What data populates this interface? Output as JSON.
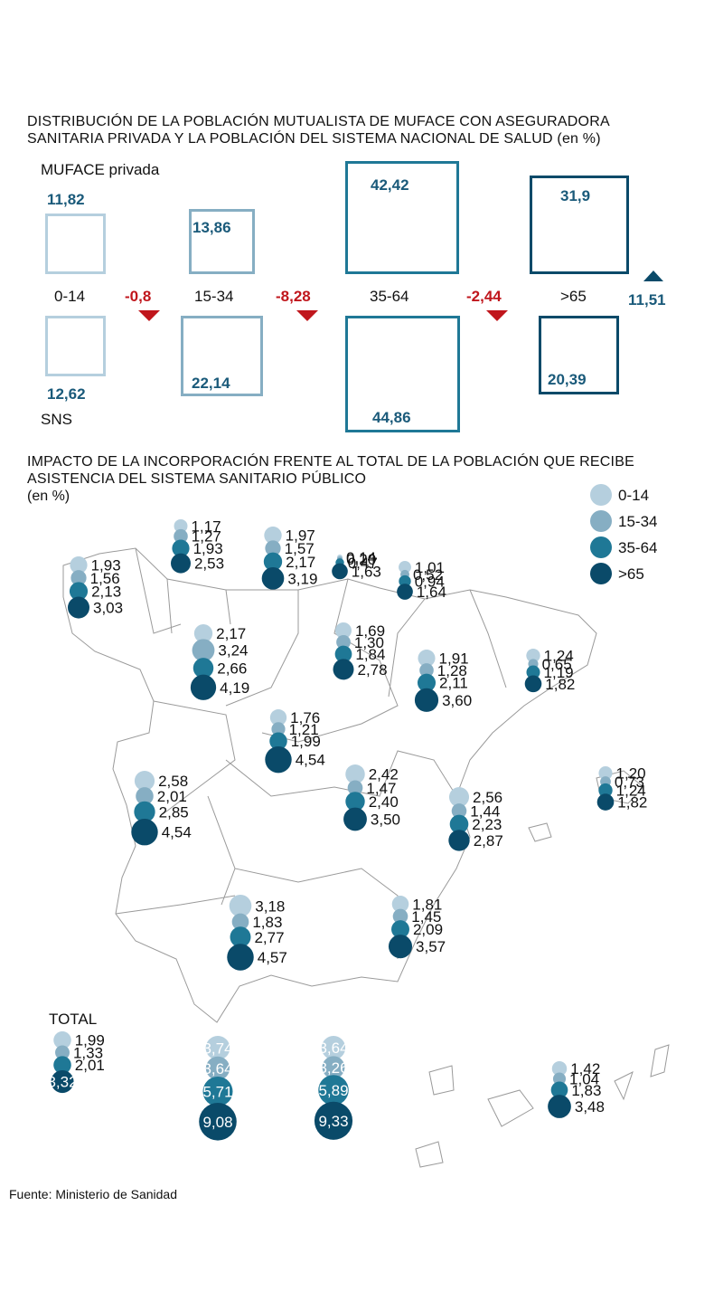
{
  "colors": {
    "c0": "#b5cfde",
    "c1": "#86aec3",
    "c2": "#1f7896",
    "c3": "#0a4a69",
    "up": "#1a5a7a",
    "down": "#c0161c",
    "map_line": "#9a9a9a"
  },
  "part1": {
    "title": "DISTRIBUCIÓN DE LA POBLACIÓN MUTUALISTA DE MUFACE CON ASEGURADORA\nSANITARIA PRIVADA Y LA POBLACIÓN DEL SISTEMA NACIONAL DE SALUD (en %)",
    "row_top_label": "MUFACE privada",
    "row_bottom_label": "SNS",
    "groups": [
      {
        "label": "0-14",
        "muface": "11,82",
        "sns": "12,62",
        "change": "-0,8",
        "dir": "down"
      },
      {
        "label": "15-34",
        "muface": "13,86",
        "sns": "22,14",
        "change": "-8,28",
        "dir": "down"
      },
      {
        "label": "35-64",
        "muface": "42,42",
        "sns": "44,86",
        "change": "-2,44",
        "dir": "down"
      },
      {
        "label": ">65",
        "muface": "31,9",
        "sns": "20,39",
        "change": "11,51",
        "dir": "up"
      }
    ]
  },
  "chart_data": {
    "type": "scatter",
    "title": "IMPACTO DE LA INCORPORACIÓN FRENTE AL TOTAL DE LA POBLACIÓN QUE RECIBE\nASISTENCIA DEL SISTEMA SANITARIO PÚBLICO",
    "subtitle": "(en %)",
    "series_names": [
      "0-14",
      "15-34",
      "35-64",
      ">65"
    ],
    "total": {
      "label": "TOTAL",
      "values": [
        "1,99",
        "1,33",
        "2,01",
        "3,32"
      ]
    },
    "regions": [
      [
        "1,93",
        "1,56",
        "2,13",
        "3,03"
      ],
      [
        "1,17",
        "1,27",
        "1,93",
        "2,53"
      ],
      [
        "1,97",
        "1,57",
        "2,17",
        "3,19"
      ],
      [
        "0,14",
        "0,20",
        "0,47",
        "1,63"
      ],
      [
        "1,01",
        "0,52",
        "0,94",
        "1,64"
      ],
      [
        "2,17",
        "3,24",
        "2,66",
        "4,19"
      ],
      [
        "1,69",
        "1,30",
        "1,84",
        "2,78"
      ],
      [
        "1,91",
        "1,28",
        "2,11",
        "3,60"
      ],
      [
        "1,24",
        "0,65",
        "1,19",
        "1,82"
      ],
      [
        "1,76",
        "1,21",
        "1,99",
        "4,54"
      ],
      [
        "2,58",
        "2,01",
        "2,85",
        "4,54"
      ],
      [
        "2,42",
        "1,47",
        "2,40",
        "3,50"
      ],
      [
        "2,56",
        "1,44",
        "2,23",
        "2,87"
      ],
      [
        "1,20",
        "0,73",
        "1,24",
        "1,82"
      ],
      [
        "3,18",
        "1,83",
        "2,77",
        "4,57"
      ],
      [
        "1,81",
        "1,45",
        "2,09",
        "3,57"
      ],
      [
        "3,74",
        "3,64",
        "5,71",
        "9,08"
      ],
      [
        "3,64",
        "3,26",
        "5,89",
        "9,33"
      ],
      [
        "1,42",
        "1,04",
        "1,83",
        "3,48"
      ]
    ]
  },
  "source": "Fuente: Ministerio de Sanidad"
}
